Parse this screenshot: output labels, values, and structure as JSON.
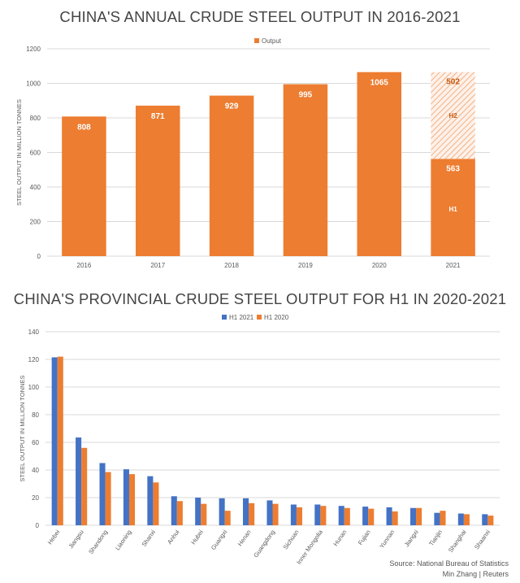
{
  "chart_data": [
    {
      "type": "bar",
      "title": "CHINA'S ANNUAL CRUDE STEEL OUTPUT IN 2016-2021",
      "ylabel": "STEEL OUTPUT IN MILLION TONNES",
      "xlabel": "",
      "ylim": [
        0,
        1200
      ],
      "yticks": [
        0,
        200,
        400,
        600,
        800,
        1000,
        1200
      ],
      "categories": [
        "2016",
        "2017",
        "2018",
        "2019",
        "2020",
        "2021"
      ],
      "series": [
        {
          "name": "Output",
          "values": [
            808,
            871,
            929,
            995,
            1065,
            563
          ]
        }
      ],
      "stack_2021": {
        "h1_label": "H1",
        "h1_value": 563,
        "h2_label": "H2",
        "h2_value": 502
      },
      "legend": "top-center",
      "grid": true,
      "colors": {
        "output": "#ED7D31",
        "h2_hatch": "#F4B183",
        "axis_text": "#595959",
        "grid": "#D9D9D9"
      }
    },
    {
      "type": "bar",
      "title": "CHINA'S PROVINCIAL CRUDE STEEL OUTPUT FOR H1 IN 2020-2021",
      "ylabel": "STEEL OUTPUT IN MILLION TONNES",
      "xlabel": "",
      "ylim": [
        0,
        140
      ],
      "yticks": [
        0,
        20,
        40,
        60,
        80,
        100,
        120,
        140
      ],
      "categories": [
        "Hebei",
        "Jiangsu",
        "Shandong",
        "Liaoning",
        "Shanxi",
        "Anhui",
        "Hubei",
        "Guangxi",
        "Henan",
        "Guangdong",
        "Sichuan",
        "Inner Mongolia",
        "Hunan",
        "Fujian",
        "Yunnan",
        "Jiangxi",
        "Tianjin",
        "Shanghai",
        "Shaanxi"
      ],
      "series": [
        {
          "name": "H1 2021",
          "values": [
            121.5,
            63.5,
            45,
            40.5,
            35.5,
            21,
            20,
            19.5,
            19.5,
            18,
            15,
            15,
            14,
            13.5,
            13,
            12.5,
            9,
            8.5,
            8
          ]
        },
        {
          "name": "H1 2020",
          "values": [
            122,
            56,
            38.5,
            37,
            31,
            17.5,
            15.5,
            10.5,
            16,
            15.5,
            13,
            14,
            12.5,
            12,
            10,
            12.5,
            10.5,
            8,
            7
          ]
        }
      ],
      "legend": "top-center",
      "grid": true,
      "colors": {
        "h1_2021": "#4472C4",
        "h1_2020": "#ED7D31",
        "axis_text": "#595959",
        "grid": "#D9D9D9"
      }
    }
  ],
  "footer": {
    "source": "Source: National Bureau of Statistics",
    "author": "Min Zhang | Reuters"
  }
}
